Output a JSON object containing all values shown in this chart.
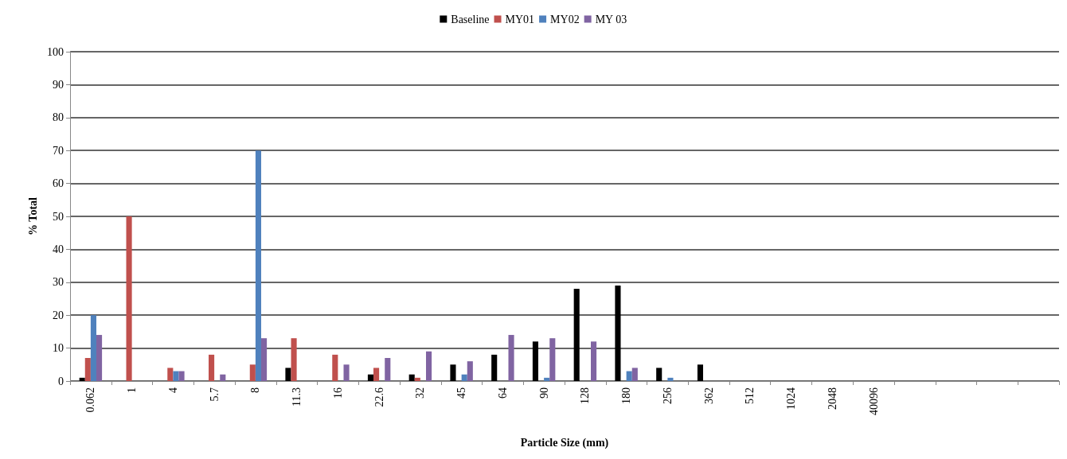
{
  "chart_data": {
    "type": "bar",
    "xlabel": "Particle Size (mm)",
    "ylabel": "% Total",
    "categories": [
      "0.062",
      "1",
      "4",
      "5.7",
      "8",
      "11.3",
      "16",
      "22.6",
      "32",
      "45",
      "64",
      "90",
      "128",
      "180",
      "256",
      "362",
      "512",
      "1024",
      "2048",
      "40096",
      null,
      null,
      null,
      null
    ],
    "series": [
      {
        "name": "Baseline",
        "color": "#000000",
        "values": [
          1,
          null,
          null,
          null,
          null,
          4,
          null,
          2,
          2,
          5,
          8,
          12,
          28,
          29,
          4,
          5,
          null,
          null,
          null,
          null,
          null,
          null,
          null,
          null
        ]
      },
      {
        "name": "MY01",
        "color": "#c0504d",
        "values": [
          7,
          50,
          4,
          8,
          5,
          13,
          8,
          4,
          1,
          null,
          null,
          null,
          null,
          null,
          null,
          null,
          null,
          null,
          null,
          null,
          null,
          null,
          null,
          null
        ]
      },
      {
        "name": "MY02",
        "color": "#4f81bd",
        "values": [
          20,
          null,
          3,
          null,
          70,
          null,
          null,
          null,
          null,
          2,
          null,
          1,
          null,
          3,
          1,
          null,
          null,
          null,
          null,
          null,
          null,
          null,
          null,
          null
        ]
      },
      {
        "name": "MY 03",
        "color": "#8064a2",
        "values": [
          14,
          null,
          3,
          2,
          13,
          null,
          5,
          7,
          9,
          6,
          14,
          13,
          12,
          4,
          null,
          null,
          null,
          null,
          null,
          null,
          null,
          null,
          null,
          null
        ]
      }
    ],
    "ylim": [
      0,
      100
    ],
    "yticks": [
      0,
      10,
      20,
      30,
      40,
      50,
      60,
      70,
      80,
      90,
      100
    ],
    "grid": "y",
    "legend": "top"
  }
}
